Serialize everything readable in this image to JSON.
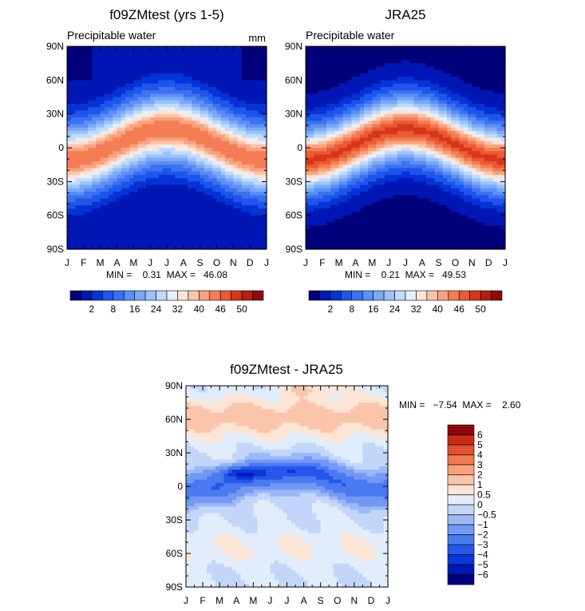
{
  "palettes": {
    "absolute": [
      "#00007a",
      "#0017b5",
      "#0533d6",
      "#1f55ea",
      "#3a72f2",
      "#5b8ff6",
      "#7ba8f8",
      "#9cc3fa",
      "#c2dbfb",
      "#e6effb",
      "#fde4d3",
      "#fbc4a8",
      "#f9a27e",
      "#f47d55",
      "#ea5a33",
      "#d8361a",
      "#b71e0c",
      "#8f0a05"
    ],
    "difference": [
      "#000080",
      "#0018b8",
      "#0838d8",
      "#2457ea",
      "#4a7af0",
      "#7399f4",
      "#9bb8f7",
      "#c3d6fa",
      "#e2edfc",
      "#fde5d6",
      "#fac5aa",
      "#f7a07b",
      "#f17a53",
      "#e4502d",
      "#c72c14",
      "#8c0808"
    ]
  },
  "chart_data": [
    {
      "type": "heatmap",
      "title": "f09ZMtest (yrs 1-5)",
      "subtitle": "Precipitable water",
      "units": "mm",
      "x_ticks": [
        "J",
        "F",
        "M",
        "A",
        "M",
        "J",
        "J",
        "A",
        "S",
        "O",
        "N",
        "D",
        "J"
      ],
      "y_ticks": [
        "90N",
        "60N",
        "30N",
        "0",
        "30S",
        "60S",
        "90S"
      ],
      "min_max_text": "MIN =    0.31  MAX =   46.08",
      "min": 0.31,
      "max": 46.08,
      "colorbar_labels": [
        "2",
        "8",
        "16",
        "24",
        "32",
        "40",
        "46",
        "50"
      ]
    },
    {
      "type": "heatmap",
      "title": "JRA25",
      "subtitle": "Precipitable water",
      "x_ticks": [
        "J",
        "F",
        "M",
        "A",
        "M",
        "J",
        "J",
        "A",
        "S",
        "O",
        "N",
        "D",
        "J"
      ],
      "y_ticks": [
        "90N",
        "60N",
        "30N",
        "0",
        "30S",
        "60S",
        "90S"
      ],
      "min_max_text": "MIN =    0.21  MAX =   49.53",
      "min": 0.21,
      "max": 49.53,
      "colorbar_labels": [
        "2",
        "8",
        "16",
        "24",
        "32",
        "40",
        "46",
        "50"
      ]
    },
    {
      "type": "heatmap",
      "title": "f09ZMtest - JRA25",
      "x_ticks": [
        "J",
        "F",
        "M",
        "A",
        "M",
        "J",
        "J",
        "A",
        "S",
        "O",
        "N",
        "D",
        "J"
      ],
      "y_ticks": [
        "90N",
        "60N",
        "30N",
        "0",
        "30S",
        "60S",
        "90S"
      ],
      "min_max_text": "MIN =   −7.54  MAX =    2.60",
      "min": -7.54,
      "max": 2.6,
      "colorbar_labels": [
        "6",
        "5",
        "4",
        "3",
        "2",
        "1",
        "0.5",
        "0",
        "−0.5",
        "−1",
        "−2",
        "−3",
        "−4",
        "−5",
        "−6"
      ]
    }
  ]
}
